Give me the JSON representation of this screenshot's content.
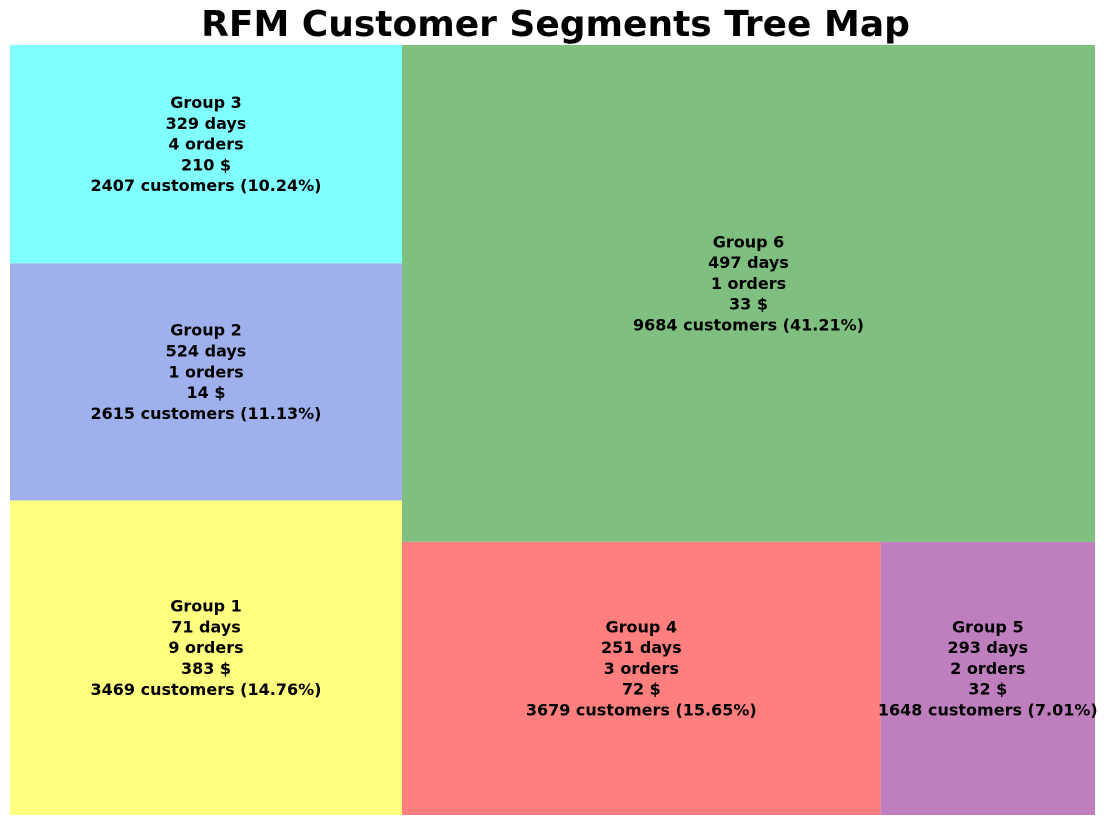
{
  "chart_data": {
    "type": "treemap",
    "title": "RFM Customer Segments Tree Map",
    "segments": [
      {
        "name": "Group 1",
        "recency_days": 71,
        "frequency_orders": 9,
        "monetary_usd": 383,
        "customers": 3469,
        "customer_share_pct": 14.76,
        "color": "#ffff7f",
        "lines": [
          "Group 1",
          "71 days",
          "9 orders",
          "383 $",
          "3469 customers (14.76%)"
        ]
      },
      {
        "name": "Group 2",
        "recency_days": 524,
        "frequency_orders": 1,
        "monetary_usd": 14,
        "customers": 2615,
        "customer_share_pct": 11.13,
        "color": "#9eb1ed",
        "lines": [
          "Group 2",
          "524 days",
          "1 orders",
          "14 $",
          "2615 customers (11.13%)"
        ]
      },
      {
        "name": "Group 3",
        "recency_days": 329,
        "frequency_orders": 4,
        "monetary_usd": 210,
        "customers": 2407,
        "customer_share_pct": 10.24,
        "color": "#7fffff",
        "lines": [
          "Group 3",
          "329 days",
          "4 orders",
          "210 $",
          "2407 customers (10.24%)"
        ]
      },
      {
        "name": "Group 4",
        "recency_days": 251,
        "frequency_orders": 3,
        "monetary_usd": 72,
        "customers": 3679,
        "customer_share_pct": 15.65,
        "color": "#ff7f7f",
        "lines": [
          "Group 4",
          "251 days",
          "3 orders",
          "72 $",
          "3679 customers (15.65%)"
        ]
      },
      {
        "name": "Group 5",
        "recency_days": 293,
        "frequency_orders": 2,
        "monetary_usd": 32,
        "customers": 1648,
        "customer_share_pct": 7.01,
        "color": "#bf7fbf",
        "lines": [
          "Group 5",
          "293 days",
          "2 orders",
          "32 $",
          "1648 customers (7.01%)"
        ]
      },
      {
        "name": "Group 6",
        "recency_days": 497,
        "frequency_orders": 1,
        "monetary_usd": 33,
        "customers": 9684,
        "customer_share_pct": 41.21,
        "color": "#7fbf7f",
        "lines": [
          "Group 6",
          "497 days",
          "1 orders",
          "33 $",
          "9684 customers (41.21%)"
        ]
      }
    ]
  }
}
